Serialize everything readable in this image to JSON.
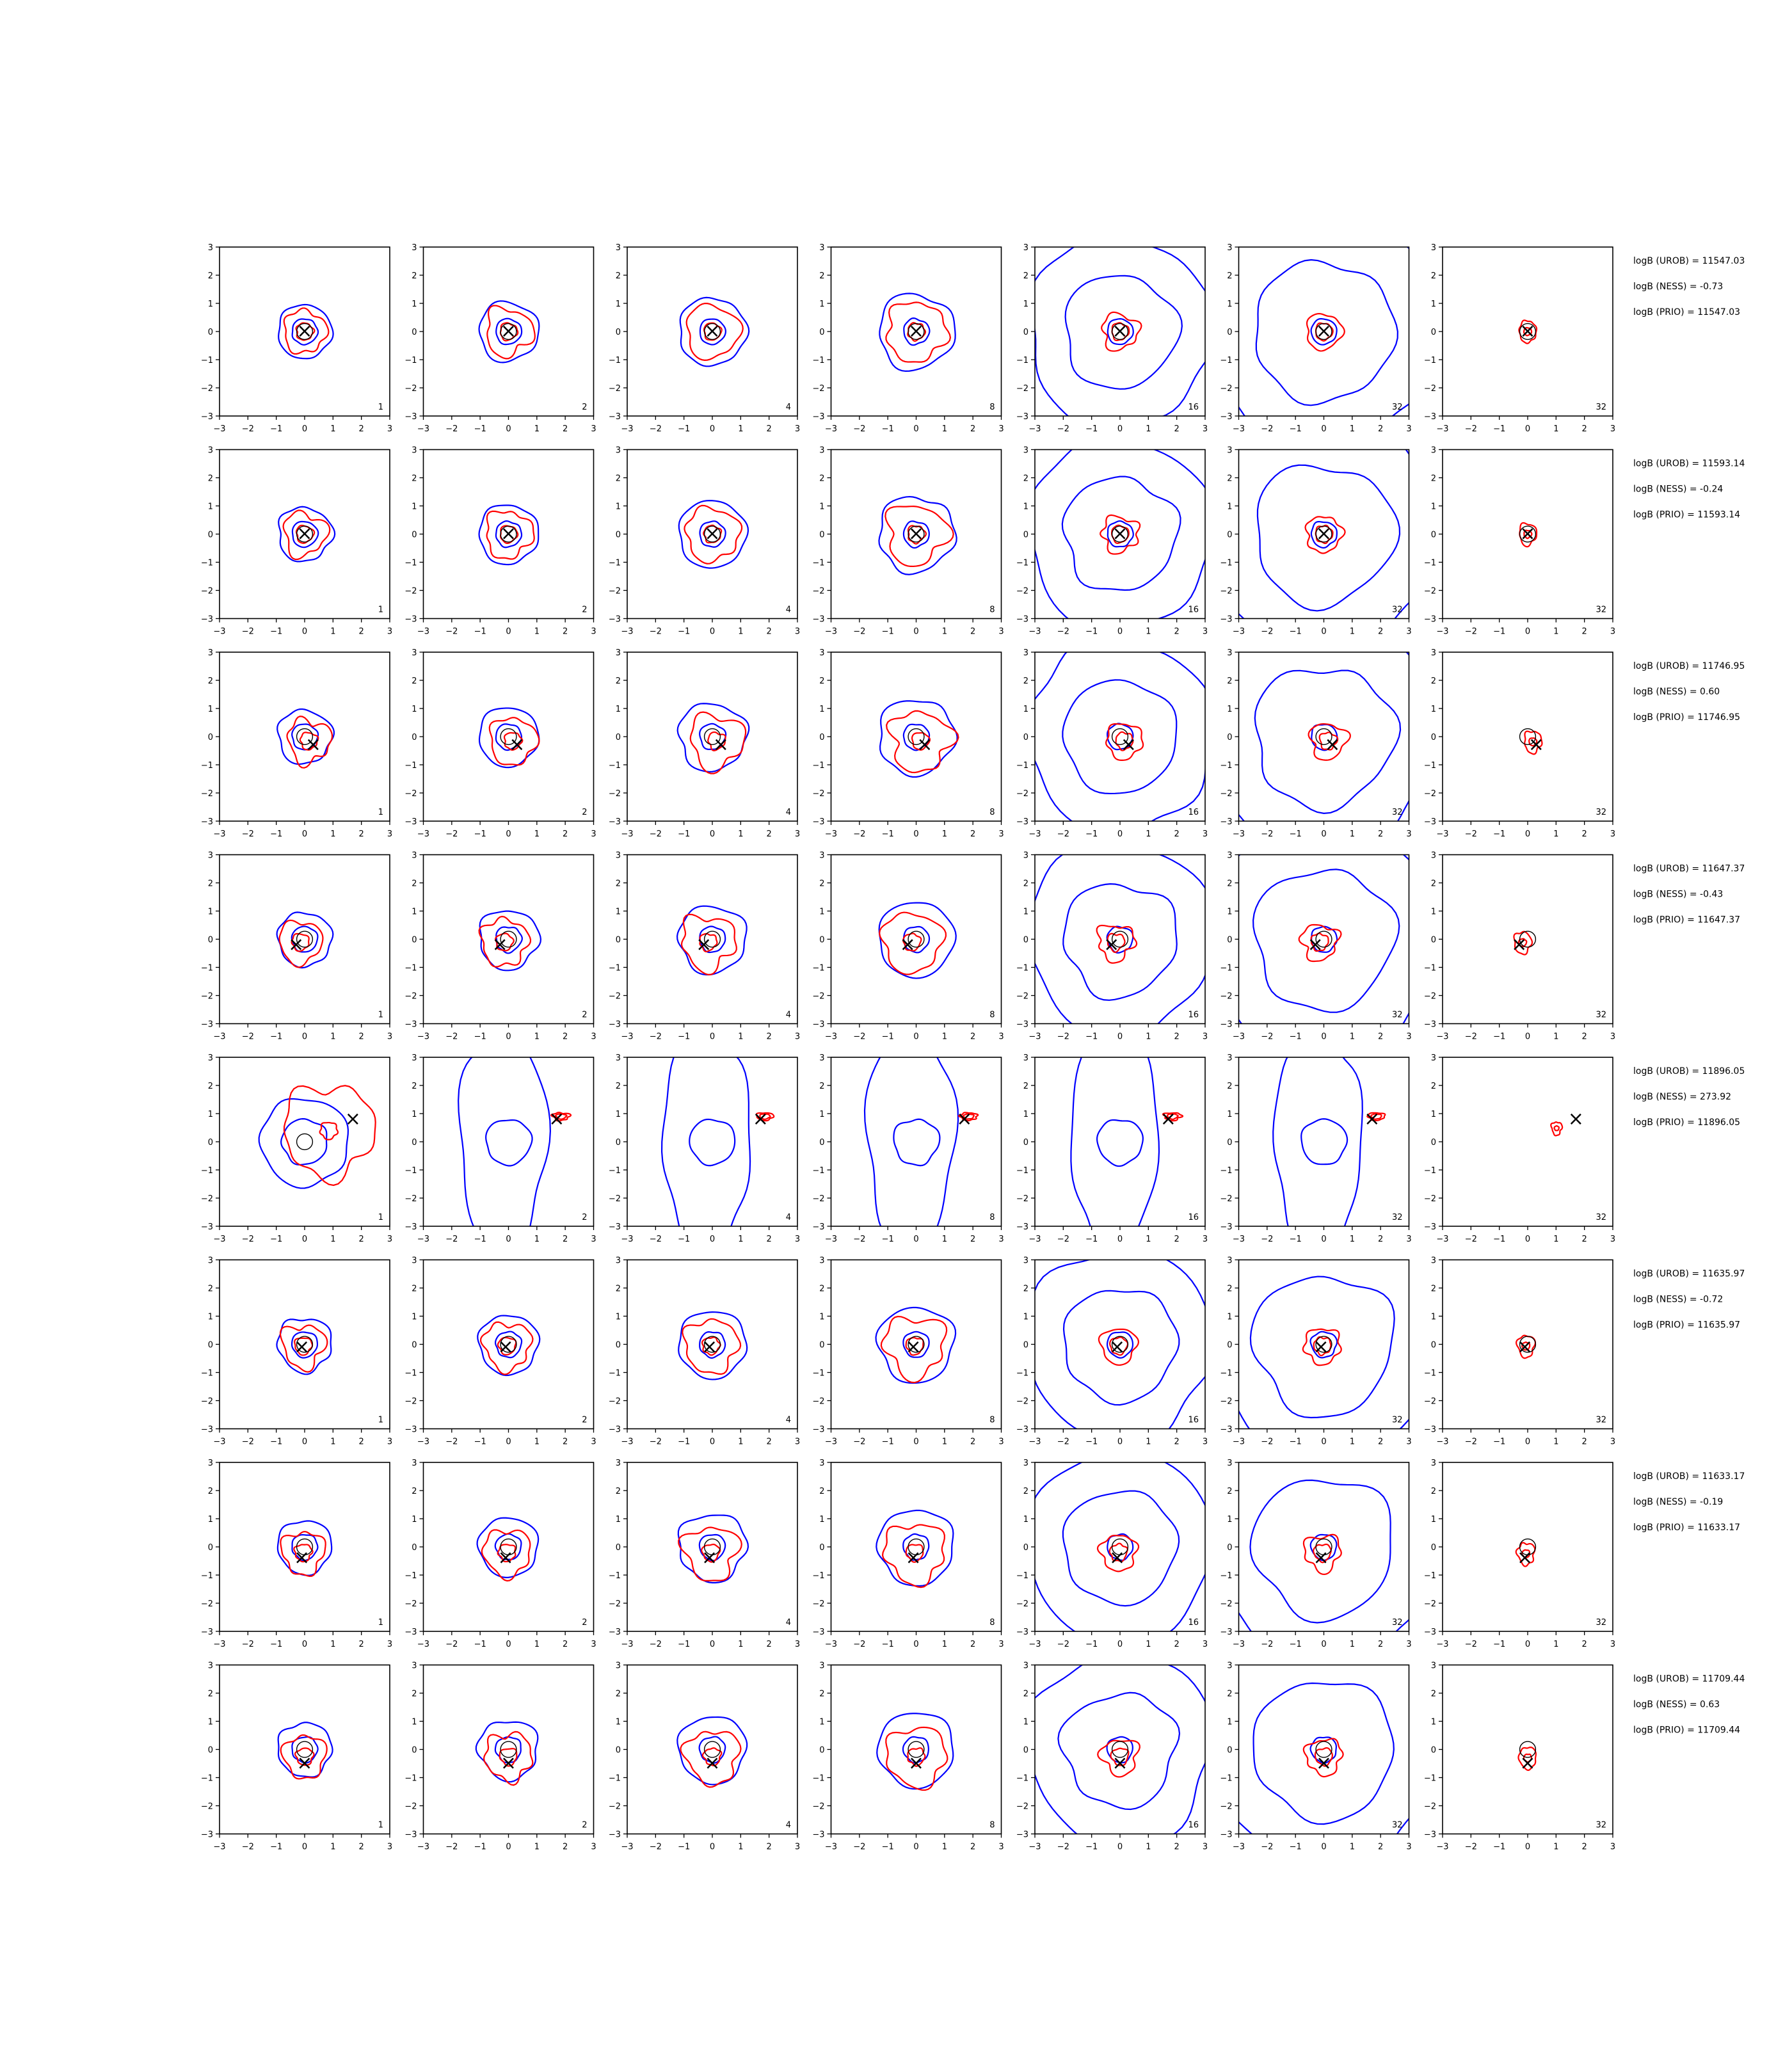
{
  "figure": {
    "columns": [
      "1",
      "2",
      "4",
      "8",
      "16",
      "32",
      "32"
    ]
  },
  "colors": {
    "wide": "#0000ff",
    "narrow": "#ff0000",
    "marker": "#000000"
  },
  "chart_data": {
    "type": "contour",
    "xlim": [
      -3,
      3
    ],
    "ylim": [
      -3,
      3
    ],
    "ticks": [
      -3,
      -2,
      -1,
      0,
      1,
      2,
      3
    ],
    "marker_symbol": "×",
    "rows": [
      {
        "marker": [
          0.0,
          0.0
        ],
        "stats": [
          "logB (UROB) = 11547.03",
          "logB (NESS) = -0.73",
          "logB (PRIO) = 11547.03"
        ]
      },
      {
        "marker": [
          0.0,
          0.0
        ],
        "stats": [
          "logB (UROB) = 11593.14",
          "logB (NESS) = -0.24",
          "logB (PRIO) = 11593.14"
        ]
      },
      {
        "marker": [
          0.3,
          -0.3
        ],
        "stats": [
          "logB (UROB) = 11746.95",
          "logB (NESS) = 0.60",
          "logB (PRIO) = 11746.95"
        ]
      },
      {
        "marker": [
          -0.3,
          -0.2
        ],
        "stats": [
          "logB (UROB) = 11647.37",
          "logB (NESS) = -0.43",
          "logB (PRIO) = 11647.37"
        ]
      },
      {
        "marker": [
          1.7,
          0.8
        ],
        "stats": [
          "logB (UROB) = 11896.05",
          "logB (NESS) = 273.92",
          "logB (PRIO) = 11896.05"
        ]
      },
      {
        "marker": [
          -0.1,
          -0.1
        ],
        "stats": [
          "logB (UROB) = 11635.97",
          "logB (NESS) = -0.72",
          "logB (PRIO) = 11635.97"
        ]
      },
      {
        "marker": [
          -0.1,
          -0.4
        ],
        "stats": [
          "logB (UROB) = 11633.17",
          "logB (NESS) = -0.19",
          "logB (PRIO) = 11633.17"
        ]
      },
      {
        "marker": [
          0.0,
          -0.5
        ],
        "stats": [
          "logB (UROB) = 11709.44",
          "logB (NESS) = 0.63",
          "logB (PRIO) = 11709.44"
        ]
      }
    ],
    "contour_note": "each panel: blue (inner/outer) and red (inner/outer) closed contours around the × marker; sizes approximate in data units",
    "contours": [
      [
        [
          [
            0.6,
            0.6,
            1.0,
            1.0
          ]
        ],
        [
          [
            0.6,
            0.6,
            0.95,
            0.95
          ]
        ],
        [
          [
            0.5,
            0.5,
            1.1,
            1.0
          ]
        ],
        [
          [
            0.4,
            0.4,
            1.2,
            1.2
          ]
        ],
        [
          [
            0.5,
            0.5,
            1.2,
            1.1
          ]
        ],
        [
          [
            0.4,
            0.4,
            0.9,
            0.9
          ]
        ],
        [
          [
            0.3,
            0.3,
            0.9,
            0.9
          ]
        ],
        [
          [
            0.5,
            0.5,
            1.0,
            1.0
          ]
        ]
      ],
      [
        [
          [
            0.5,
            0.5,
            1.15,
            1.1
          ]
        ],
        [
          [
            0.5,
            0.5,
            1.2,
            1.15
          ]
        ],
        [
          [
            0.55,
            0.55,
            1.5,
            1.35
          ]
        ],
        [
          [
            0.5,
            0.5,
            1.4,
            1.3
          ]
        ],
        [
          [
            0.5,
            0.5,
            1.4,
            1.35
          ]
        ],
        [
          [
            0.55,
            0.55,
            1.2,
            1.1
          ]
        ],
        [
          [
            0.55,
            0.55,
            1.45,
            1.4
          ]
        ],
        [
          [
            0.6,
            0.6,
            1.25,
            1.25
          ]
        ]
      ],
      [
        [
          [
            0.5,
            0.5,
            1.2,
            1.2
          ]
        ],
        [
          [
            0.55,
            0.55,
            1.3,
            1.25
          ]
        ],
        [
          [
            0.55,
            0.55,
            1.3,
            1.35
          ]
        ],
        [
          [
            0.5,
            0.5,
            1.3,
            1.35
          ]
        ],
        [
          [
            0.6,
            0.6,
            1.35,
            1.25
          ]
        ],
        [
          [
            0.5,
            0.5,
            1.3,
            1.3
          ]
        ],
        [
          [
            0.5,
            0.5,
            1.4,
            1.3
          ]
        ],
        [
          [
            0.55,
            0.55,
            1.3,
            1.25
          ]
        ]
      ],
      [
        [
          [
            0.6,
            0.6,
            1.55,
            1.35
          ]
        ],
        [
          [
            0.6,
            0.6,
            1.55,
            1.45
          ]
        ],
        [
          [
            0.7,
            0.7,
            1.8,
            1.75
          ]
        ],
        [
          [
            0.7,
            0.7,
            1.5,
            1.45
          ]
        ],
        [
          [
            0.7,
            0.7,
            1.8,
            1.75
          ]
        ],
        [
          [
            0.7,
            0.7,
            1.7,
            1.65
          ]
        ],
        [
          [
            0.55,
            0.55,
            1.5,
            1.6
          ]
        ],
        [
          [
            0.75,
            0.75,
            1.6,
            1.55
          ]
        ]
      ],
      [
        [
          [
            1.05,
            1.0,
            2.4,
            2.2
          ]
        ],
        [
          [
            0.65,
            0.65,
            1.4,
            1.4
          ]
        ],
        [
          [
            0.6,
            0.6,
            1.65,
            1.6
          ]
        ],
        [
          [
            0.65,
            0.65,
            1.65,
            1.7
          ]
        ],
        [
          [
            0.7,
            0.7,
            1.85,
            1.85
          ]
        ],
        [
          [
            0.65,
            0.65,
            1.75,
            1.75
          ]
        ],
        [
          [
            0.8,
            1.0,
            2.25,
            2.5
          ]
        ],
        [
          [
            0.7,
            0.75,
            1.8,
            1.8
          ]
        ]
      ],
      [
        [
          [
            1.6,
            1.9,
            3.0,
            3.0
          ]
        ],
        [
          [
            1.1,
            1.25,
            2.6,
            2.6
          ]
        ],
        [
          [
            1.3,
            1.5,
            2.65,
            2.7
          ]
        ],
        [
          [
            1.0,
            1.05,
            2.45,
            2.5
          ]
        ],
        [
          [
            1.3,
            1.5,
            2.6,
            2.6
          ]
        ],
        [
          [
            1.2,
            1.65,
            2.7,
            3.0
          ]
        ],
        [
          [
            1.3,
            1.6,
            2.8,
            3.1
          ]
        ],
        [
          [
            0.75,
            1.1,
            1.9,
            2.0
          ]
        ]
      ],
      [
        [
          [
            0.0,
            0.0,
            0.0,
            0.0
          ]
        ],
        [
          [
            0.0,
            0.0,
            0.0,
            0.0
          ]
        ],
        [
          [
            0.0,
            0.0,
            0.0,
            0.0
          ]
        ],
        [
          [
            0.0,
            0.0,
            0.0,
            0.0
          ]
        ],
        [
          [
            0.0,
            0.0,
            0.0,
            0.0
          ]
        ],
        [
          [
            0.0,
            0.0,
            0.0,
            0.0
          ]
        ],
        [
          [
            0.0,
            0.0,
            0.0,
            0.0
          ]
        ],
        [
          [
            0.0,
            0.0,
            0.0,
            0.0
          ]
        ]
      ]
    ]
  }
}
